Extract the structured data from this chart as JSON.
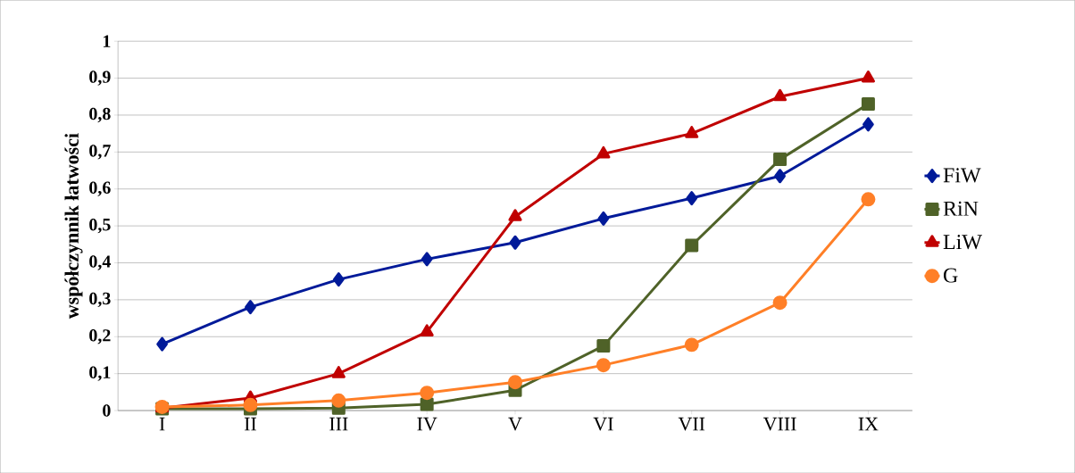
{
  "chart_data": {
    "type": "line",
    "ylabel": "współczynnik łatwości",
    "categories": [
      "I",
      "II",
      "III",
      "IV",
      "V",
      "VI",
      "VII",
      "VIII",
      "IX"
    ],
    "series": [
      {
        "name": "FiW",
        "color": "#001a99",
        "marker": "diamond",
        "values": [
          0.18,
          0.28,
          0.355,
          0.41,
          0.455,
          0.52,
          0.575,
          0.635,
          0.775
        ]
      },
      {
        "name": "RiN",
        "color": "#4f6228",
        "marker": "square",
        "values": [
          0.005,
          0.005,
          0.007,
          0.017,
          0.055,
          0.175,
          0.447,
          0.68,
          0.83
        ]
      },
      {
        "name": "LiW",
        "color": "#c00000",
        "marker": "triangle",
        "values": [
          0.007,
          0.034,
          0.1,
          0.213,
          0.525,
          0.695,
          0.75,
          0.85,
          0.9
        ]
      },
      {
        "name": "G",
        "color": "#ff7f27",
        "marker": "circle",
        "values": [
          0.01,
          0.015,
          0.027,
          0.048,
          0.077,
          0.123,
          0.178,
          0.292,
          0.572
        ]
      }
    ],
    "ylim": [
      0,
      1
    ],
    "yticks": [
      {
        "value": 0,
        "label": "0"
      },
      {
        "value": 0.1,
        "label": "0,1"
      },
      {
        "value": 0.2,
        "label": "0,2"
      },
      {
        "value": 0.3,
        "label": "0,3"
      },
      {
        "value": 0.4,
        "label": "0,4"
      },
      {
        "value": 0.5,
        "label": "0,5"
      },
      {
        "value": 0.6,
        "label": "0,6"
      },
      {
        "value": 0.7,
        "label": "0,7"
      },
      {
        "value": 0.8,
        "label": "0,8"
      },
      {
        "value": 0.9,
        "label": "0,9"
      },
      {
        "value": 1,
        "label": "1"
      }
    ],
    "grid": "y",
    "legend": "right",
    "line_style": "solid"
  }
}
